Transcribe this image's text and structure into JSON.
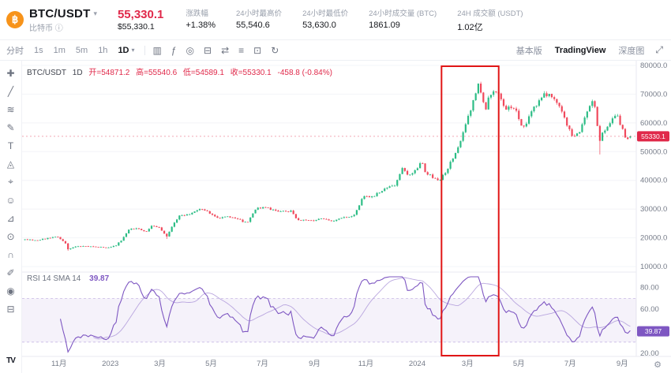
{
  "header": {
    "coin_glyph": "฿",
    "pair": "BTC/USDT",
    "dropdown_caret": "▾",
    "pair_subtitle": "比特币",
    "info_glyph": "ⓘ",
    "price": "55,330.1",
    "price_usd": "$55,330.1",
    "stats": [
      {
        "name": "stat-change",
        "label": "涨跌幅",
        "value": "+1.38%"
      },
      {
        "name": "stat-24h-high",
        "label": "24小时最高价",
        "value": "55,540.6"
      },
      {
        "name": "stat-24h-low",
        "label": "24小时最低价",
        "value": "53,630.0"
      },
      {
        "name": "stat-24h-volume-btc",
        "label": "24小时成交量 (BTC)",
        "value": "1861.09"
      },
      {
        "name": "stat-24h-turnover-usdt",
        "label": "24H 成交额 (USDT)",
        "value": "1.02亿"
      }
    ]
  },
  "toolbar": {
    "intervals": [
      {
        "name": "interval-timeshare",
        "label": "分时"
      },
      {
        "name": "interval-1s",
        "label": "1s"
      },
      {
        "name": "interval-1m",
        "label": "1m"
      },
      {
        "name": "interval-5m",
        "label": "5m"
      },
      {
        "name": "interval-1h",
        "label": "1h"
      },
      {
        "name": "interval-1d",
        "label": "1D"
      }
    ],
    "active_interval": "1D",
    "interval_caret": "▾",
    "icons": [
      {
        "name": "chart-style-icon",
        "glyph": "▥"
      },
      {
        "name": "indicator-icon",
        "glyph": "ƒ"
      },
      {
        "name": "target-icon",
        "glyph": "◎"
      },
      {
        "name": "delete-icon",
        "glyph": "⊟"
      },
      {
        "name": "compare-icon",
        "glyph": "⇄"
      },
      {
        "name": "list-menu-icon",
        "glyph": "≡"
      },
      {
        "name": "snapshot-icon",
        "glyph": "⊡"
      },
      {
        "name": "reload-icon",
        "glyph": "↻"
      }
    ],
    "tabs": [
      {
        "name": "tab-basic",
        "label": "基本版"
      },
      {
        "name": "tab-tradingview",
        "label": "TradingView"
      },
      {
        "name": "tab-depth",
        "label": "深度图"
      }
    ],
    "active_tab": "TradingView",
    "expand_glyph": "⤢"
  },
  "drawing_tools": [
    {
      "name": "crosshair-icon",
      "glyph": "✚"
    },
    {
      "name": "trendline-icon",
      "glyph": "╱"
    },
    {
      "name": "fib-retracement-icon",
      "glyph": "≋"
    },
    {
      "name": "brush-icon",
      "glyph": "✎"
    },
    {
      "name": "text-tool-icon",
      "glyph": "T"
    },
    {
      "name": "xabcd-pattern-icon",
      "glyph": "◬"
    },
    {
      "name": "forecast-icon",
      "glyph": "⌖"
    },
    {
      "name": "emoji-icon",
      "glyph": "☺"
    },
    {
      "name": "measure-icon",
      "glyph": "⊿"
    },
    {
      "name": "zoom-tool-icon",
      "glyph": "⊙"
    },
    {
      "name": "magnet-icon",
      "glyph": "∩"
    },
    {
      "name": "drawing-lock-icon",
      "glyph": "✐"
    },
    {
      "name": "hide-drawings-icon",
      "glyph": "◉"
    },
    {
      "name": "remove-drawings-icon",
      "glyph": "⊟"
    }
  ],
  "legend": {
    "pair": "BTC/USDT",
    "interval": "1D",
    "open": "开=54871.2",
    "high": "高=55540.6",
    "low": "低=54589.1",
    "close": "收=55330.1",
    "change": "-458.8 (-0.84%)"
  },
  "rsi_legend": {
    "label": "RSI 14 SMA 14",
    "value": "39.87"
  },
  "footer": {
    "tv_logo": "TV",
    "gear_glyph": "⚙"
  },
  "colors": {
    "accent_red": "#e0294a",
    "candle_up": "#2dbd86",
    "candle_down": "#f0495c",
    "rsi_purple": "#7e57c2",
    "annotation_red": "#e11616",
    "bitcoin_orange": "#f7931a",
    "axis_text": "#767c89",
    "grid": "#f3f4f8",
    "border": "#e8eaf0"
  },
  "chart_data": {
    "type": "candlestick",
    "symbol": "BTC/USDT",
    "interval": "1D",
    "time_range_days": 723,
    "candle_count": 240,
    "price_axis_ticks": [
      {
        "value": 80000,
        "label": "80000.0"
      },
      {
        "value": 70000,
        "label": "70000.0"
      },
      {
        "value": 60000,
        "label": "60000.0"
      },
      {
        "value": 50000,
        "label": "50000.0"
      },
      {
        "value": 40000,
        "label": "40000.0"
      },
      {
        "value": 30000,
        "label": "30000.0"
      },
      {
        "value": 20000,
        "label": "20000.0"
      },
      {
        "value": 10000,
        "label": "10000.0"
      }
    ],
    "time_axis": [
      {
        "day": 42,
        "label": "11月"
      },
      {
        "day": 103,
        "label": "2023"
      },
      {
        "day": 162,
        "label": "3月"
      },
      {
        "day": 223,
        "label": "5月"
      },
      {
        "day": 284,
        "label": "7月"
      },
      {
        "day": 346,
        "label": "9月"
      },
      {
        "day": 407,
        "label": "11月"
      },
      {
        "day": 468,
        "label": "2024"
      },
      {
        "day": 528,
        "label": "3月"
      },
      {
        "day": 589,
        "label": "5月"
      },
      {
        "day": 650,
        "label": "7月"
      },
      {
        "day": 712,
        "label": "9月"
      }
    ],
    "rsi_axis_ticks": [
      {
        "value": 80,
        "label": "80.00"
      },
      {
        "value": 60,
        "label": "60.00"
      },
      {
        "value": 40,
        "label": "40.00"
      },
      {
        "value": 20,
        "label": "20.00"
      }
    ],
    "anchors": [
      [
        0,
        19300
      ],
      [
        15,
        19150
      ],
      [
        40,
        20400
      ],
      [
        49,
        18300
      ],
      [
        53,
        15900
      ],
      [
        62,
        16900
      ],
      [
        80,
        17100
      ],
      [
        100,
        16600
      ],
      [
        110,
        17300
      ],
      [
        118,
        19800
      ],
      [
        125,
        22900
      ],
      [
        138,
        23200
      ],
      [
        145,
        21700
      ],
      [
        153,
        24300
      ],
      [
        162,
        23300
      ],
      [
        170,
        20200
      ],
      [
        178,
        25000
      ],
      [
        186,
        27900
      ],
      [
        196,
        28000
      ],
      [
        208,
        30100
      ],
      [
        218,
        29300
      ],
      [
        230,
        27000
      ],
      [
        242,
        27300
      ],
      [
        255,
        26400
      ],
      [
        266,
        25100
      ],
      [
        277,
        30500
      ],
      [
        290,
        30300
      ],
      [
        304,
        29300
      ],
      [
        318,
        29200
      ],
      [
        326,
        26100
      ],
      [
        340,
        26000
      ],
      [
        355,
        26550
      ],
      [
        368,
        25900
      ],
      [
        383,
        27100
      ],
      [
        394,
        27900
      ],
      [
        403,
        34300
      ],
      [
        416,
        34500
      ],
      [
        430,
        37200
      ],
      [
        442,
        38400
      ],
      [
        450,
        44000
      ],
      [
        457,
        41800
      ],
      [
        466,
        43300
      ],
      [
        473,
        46700
      ],
      [
        478,
        42800
      ],
      [
        487,
        41000
      ],
      [
        494,
        39800
      ],
      [
        502,
        43000
      ],
      [
        510,
        47500
      ],
      [
        517,
        51800
      ],
      [
        524,
        57300
      ],
      [
        529,
        62500
      ],
      [
        535,
        67500
      ],
      [
        541,
        73200
      ],
      [
        546,
        68200
      ],
      [
        549,
        64000
      ],
      [
        554,
        69900
      ],
      [
        560,
        70800
      ],
      [
        567,
        69300
      ],
      [
        574,
        64300
      ],
      [
        580,
        65800
      ],
      [
        587,
        63500
      ],
      [
        593,
        58400
      ],
      [
        599,
        60300
      ],
      [
        606,
        65300
      ],
      [
        613,
        67500
      ],
      [
        620,
        70000
      ],
      [
        628,
        69300
      ],
      [
        636,
        66000
      ],
      [
        645,
        60300
      ],
      [
        654,
        54500
      ],
      [
        663,
        58000
      ],
      [
        671,
        64500
      ],
      [
        678,
        68000
      ],
      [
        685,
        53000
      ],
      [
        688,
        56500
      ],
      [
        696,
        58800
      ],
      [
        705,
        63500
      ],
      [
        710,
        59200
      ],
      [
        717,
        53900
      ],
      [
        722,
        55330
      ]
    ],
    "wick_overrides": [
      {
        "day": 53,
        "low": 15500
      },
      {
        "day": 170,
        "low": 19600
      },
      {
        "day": 541,
        "high": 73700
      },
      {
        "day": 685,
        "low": 49000
      }
    ],
    "last_price": 55330.1,
    "last_price_label": "55330.1",
    "last_candle": {
      "open": 54871.2,
      "high": 55540.6,
      "low": 54589.1,
      "close": 55330.1
    },
    "rsi": {
      "period": 14,
      "sma_period": 14,
      "band": [
        30,
        70
      ],
      "current": 39.87,
      "current_label": "39.87"
    },
    "highlight_box": {
      "from_day": 497,
      "to_day": 565
    }
  }
}
